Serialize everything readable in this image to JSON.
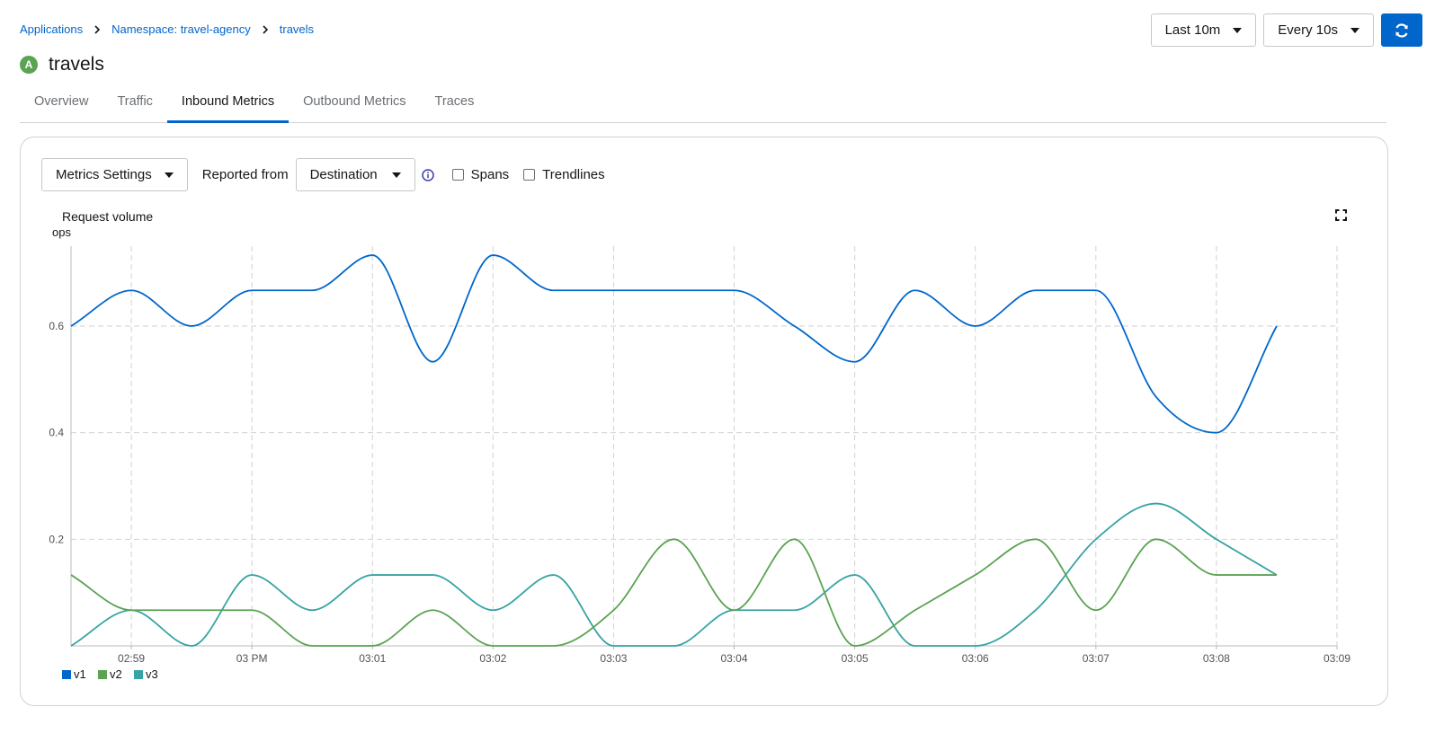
{
  "breadcrumb": {
    "items": [
      "Applications",
      "Namespace: travel-agency",
      "travels"
    ]
  },
  "controls": {
    "duration": "Last 10m",
    "refresh_interval": "Every 10s"
  },
  "header": {
    "badge": "A",
    "title": "travels"
  },
  "tabs": [
    {
      "label": "Overview",
      "active": false
    },
    {
      "label": "Traffic",
      "active": false
    },
    {
      "label": "Inbound Metrics",
      "active": true
    },
    {
      "label": "Outbound Metrics",
      "active": false
    },
    {
      "label": "Traces",
      "active": false
    }
  ],
  "toolbar": {
    "metrics_settings": "Metrics Settings",
    "reported_from_label": "Reported from",
    "reported_from_value": "Destination",
    "spans_label": "Spans",
    "trendlines_label": "Trendlines",
    "spans_checked": false,
    "trendlines_checked": false
  },
  "colors": {
    "accent": "#0066cc",
    "v1": "#0066cc",
    "v2": "#5ba352",
    "v3": "#37a3a3"
  },
  "chart_data": {
    "type": "line",
    "title": "Request volume",
    "ylabel": "ops",
    "ylim": [
      0,
      0.75
    ],
    "yticks": [
      0.2,
      0.4,
      0.6
    ],
    "ytick_labels": [
      "0.2",
      "0.4",
      "0.6"
    ],
    "xlim": [
      "02:58:30",
      "03:09:00"
    ],
    "xticks": [
      "02:59",
      "03:00",
      "03:01",
      "03:02",
      "03:03",
      "03:04",
      "03:05",
      "03:06",
      "03:07",
      "03:08",
      "03:09"
    ],
    "xtick_labels": [
      "02:59",
      "03 PM",
      "03:01",
      "03:02",
      "03:03",
      "03:04",
      "03:05",
      "03:06",
      "03:07",
      "03:08",
      "03:09"
    ],
    "grid": true,
    "legend": "bottom-left",
    "x": [
      "02:58:30",
      "02:59:00",
      "02:59:30",
      "03:00:00",
      "03:00:30",
      "03:01:00",
      "03:01:30",
      "03:02:00",
      "03:02:30",
      "03:03:00",
      "03:03:30",
      "03:04:00",
      "03:04:30",
      "03:05:00",
      "03:05:30",
      "03:06:00",
      "03:06:30",
      "03:07:00",
      "03:07:30",
      "03:08:00",
      "03:08:30"
    ],
    "series": [
      {
        "name": "v1",
        "values": [
          0.6,
          0.667,
          0.6,
          0.667,
          0.667,
          0.733,
          0.533,
          0.733,
          0.667,
          0.667,
          0.667,
          0.667,
          0.6,
          0.533,
          0.667,
          0.6,
          0.667,
          0.667,
          0.467,
          0.4,
          0.6
        ]
      },
      {
        "name": "v2",
        "values": [
          0.133,
          0.067,
          0.067,
          0.067,
          0,
          0,
          0.067,
          0,
          0,
          0.067,
          0.2,
          0.067,
          0.2,
          0,
          0.067,
          0.133,
          0.2,
          0.067,
          0.2,
          0.133,
          0.133
        ]
      },
      {
        "name": "v3",
        "values": [
          0,
          0.067,
          0,
          0.133,
          0.067,
          0.133,
          0.133,
          0.067,
          0.133,
          0,
          0,
          0.067,
          0.067,
          0.133,
          0,
          0,
          0.067,
          0.2,
          0.267,
          0.2,
          0.133
        ]
      }
    ]
  }
}
